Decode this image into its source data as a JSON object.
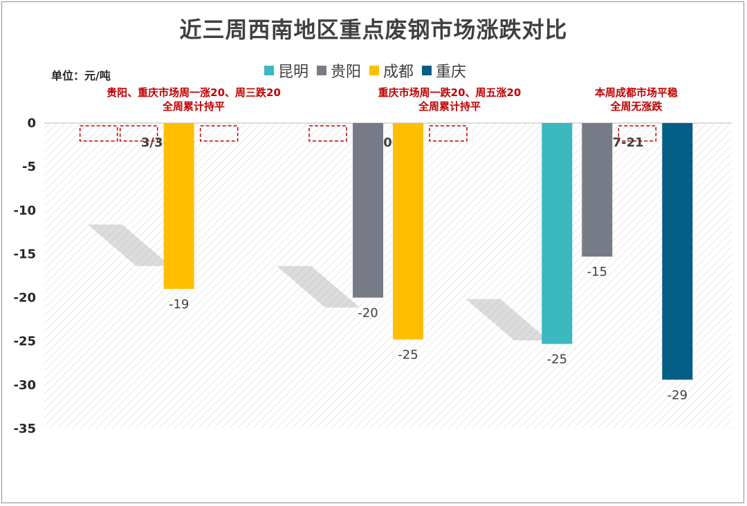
{
  "chart_data": {
    "type": "bar",
    "title": "近三周西南地区重点废钢市场涨跌对比",
    "unit_label": "单位：元/吨",
    "ylim": [
      -35,
      0
    ],
    "yticks": [
      0,
      -5,
      -10,
      -15,
      -20,
      -25,
      -30,
      -35
    ],
    "ytick_labels": [
      "0",
      "-5",
      "-10",
      "-15",
      "-20",
      "-25",
      "-30",
      "-35"
    ],
    "categories": [
      "3/3-7",
      "3/10-14",
      "3/17-21"
    ],
    "series": [
      {
        "name": "昆明",
        "color": "#3bb8c0",
        "values": [
          0,
          0,
          -25.3
        ],
        "labels": [
          "",
          "",
          "-25"
        ]
      },
      {
        "name": "贵阳",
        "color": "#767b87",
        "values": [
          0,
          -20,
          -15.3
        ],
        "labels": [
          "",
          "-20",
          "-15"
        ]
      },
      {
        "name": "成都",
        "color": "#ffbf00",
        "values": [
          -19,
          -24.8,
          0
        ],
        "labels": [
          "-19",
          "-25",
          ""
        ]
      },
      {
        "name": "重庆",
        "color": "#055e86",
        "values": [
          0,
          0,
          -29.4
        ],
        "labels": [
          "",
          "",
          "-29"
        ]
      }
    ],
    "annotations": [
      {
        "line1": "贵阳、重庆市场周一涨20、周三跌20",
        "line2": "全周累计持平"
      },
      {
        "line1": "重庆市场周一跌20、周五涨20",
        "line2": "全周累计持平"
      },
      {
        "line1": "本周成都市场平稳",
        "line2": "全周无涨跌"
      }
    ],
    "grid": false,
    "legend_position": "top"
  }
}
